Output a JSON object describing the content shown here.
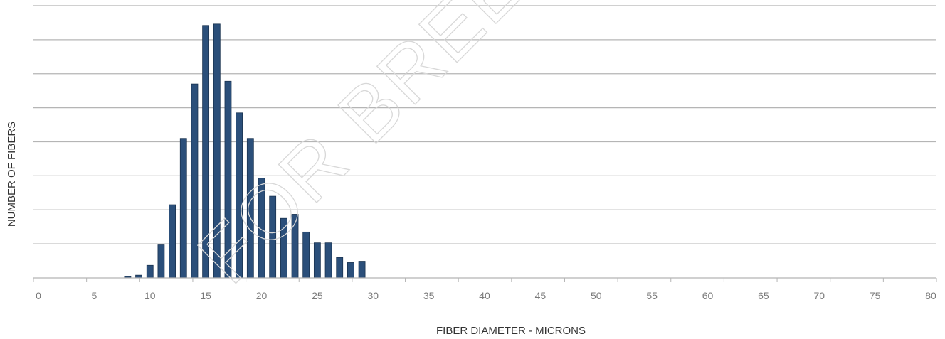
{
  "chart_data": {
    "type": "bar",
    "xlabel": "FIBER DIAMETER - MICRONS",
    "ylabel": "NUMBER OF FIBERS",
    "xlim": [
      0,
      80
    ],
    "xticks": [
      "0",
      "5",
      "10",
      "15",
      "20",
      "25",
      "30",
      "35",
      "40",
      "45",
      "50",
      "55",
      "60",
      "65",
      "70",
      "75",
      "80"
    ],
    "ylim": [
      0,
      8
    ],
    "y_gridlines": 8,
    "y_tick_labels_shown": false,
    "bar_color": "#2b4f7a",
    "bar_edge_color": "#1a3350",
    "grid": true,
    "x": [
      8,
      9,
      10,
      11,
      12,
      13,
      14,
      15,
      16,
      17,
      18,
      19,
      20,
      21,
      22,
      23,
      24,
      25,
      26,
      27,
      28,
      29
    ],
    "values": [
      0.04,
      0.08,
      0.37,
      0.97,
      2.15,
      4.1,
      5.7,
      7.42,
      7.46,
      5.78,
      4.85,
      4.1,
      2.93,
      2.4,
      1.75,
      1.87,
      1.35,
      1.03,
      1.03,
      0.6,
      0.45,
      0.49
    ]
  },
  "watermark": {
    "text": "FOR BREEDER"
  }
}
